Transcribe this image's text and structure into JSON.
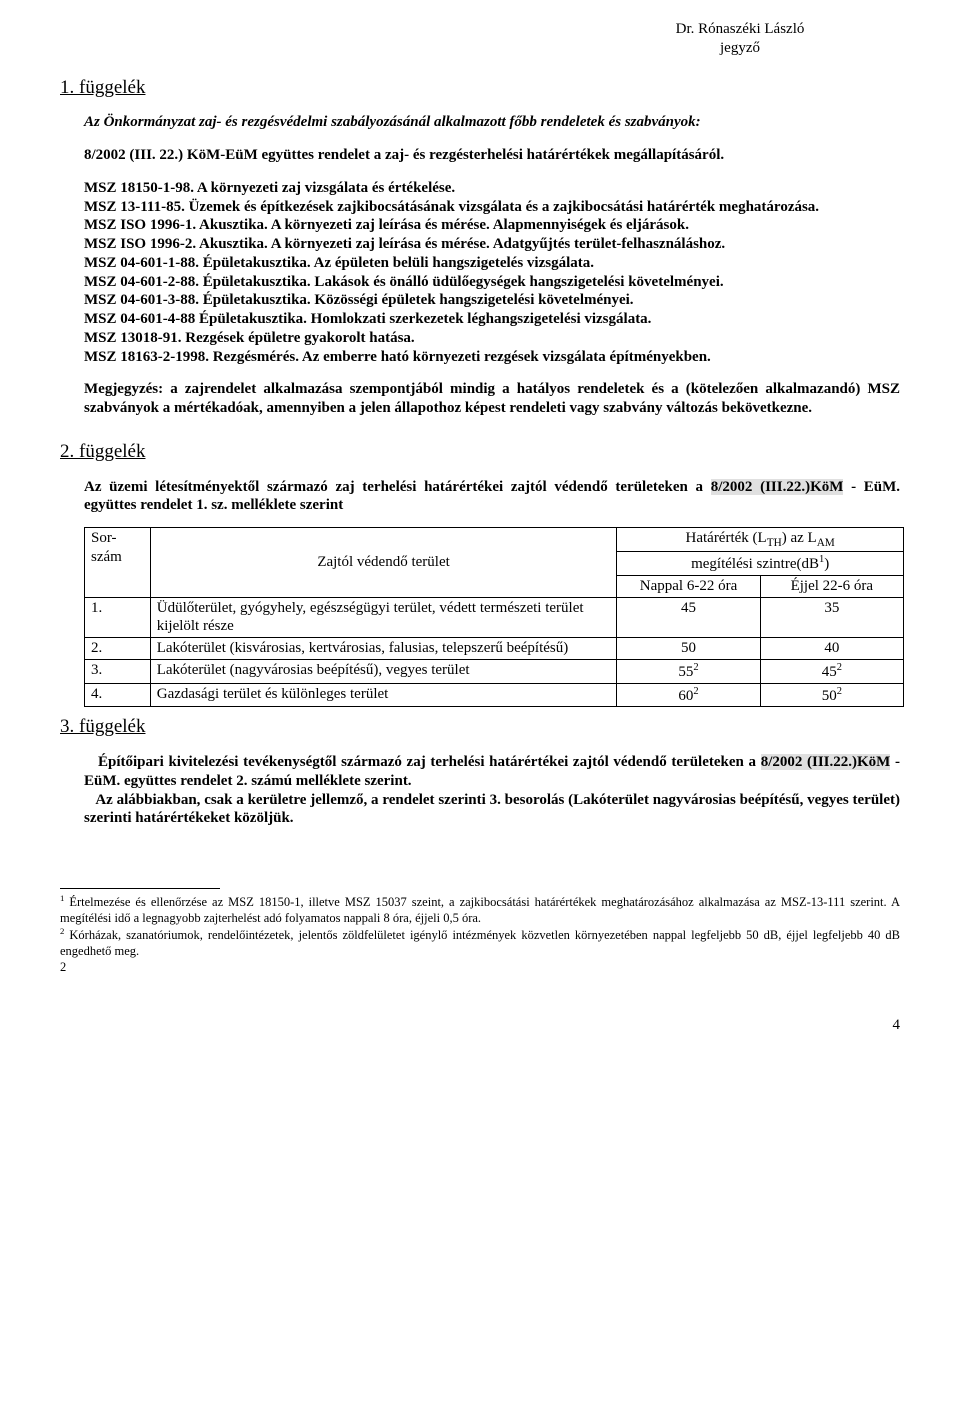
{
  "header": {
    "name": "Dr. Rónaszéki László",
    "title": "jegyző"
  },
  "appendix1": {
    "heading": "1. függelék",
    "intro": "Az Önkormányzat zaj- és rezgésvédelmi szabályozásánál alkalmazott főbb rendeletek és szabványok:",
    "p1": "8/2002 (III. 22.) KöM-EüM együttes rendelet a zaj- és rezgésterhelési határértékek megállapításáról.",
    "l1": "MSZ 18150-1-98. A környezeti zaj vizsgálata és értékelése.",
    "l2": "MSZ 13-111-85. Üzemek és építkezések zajkibocsátásának vizsgálata és a zajkibocsátási határérték meghatározása.",
    "l3": "MSZ ISO 1996-1. Akusztika. A környezeti zaj leírása és mérése. Alapmennyiségek és eljárások.",
    "l4": "MSZ ISO 1996-2. Akusztika. A környezeti zaj leírása és mérése. Adatgyűjtés terület-felhasználáshoz.",
    "l5": "MSZ 04-601-1-88. Épületakusztika. Az épületen belüli hangszigetelés vizsgálata.",
    "l6": "MSZ 04-601-2-88. Épületakusztika. Lakások és önálló üdülőegységek hangszigetelési követelményei.",
    "l7": "MSZ 04-601-3-88. Épületakusztika. Közösségi épületek hangszigetelési követelményei.",
    "l8": "MSZ 04-601-4-88 Épületakusztika. Homlokzati szerkezetek léghangszigetelési vizsgálata.",
    "l9": "MSZ 13018-91. Rezgések épületre gyakorolt hatása.",
    "l10": "MSZ 18163-2-1998. Rezgésmérés. Az emberre ható környezeti rezgések vizsgálata építményekben.",
    "note": "Megjegyzés: a zajrendelet alkalmazása szempontjából mindig a hatályos rendeletek és a (kötelezően alkalmazandó) MSZ szabványok a mértékadóak, amennyiben a jelen állapothoz képest rendeleti vagy szabvány változás bekövetkezne."
  },
  "appendix2": {
    "heading": "2. függelék",
    "intro_a": "Az üzemi létesítményektől származó zaj terhelési határértékei zajtól védendő területeken a ",
    "intro_hl": "8/2002 (III.22.)KöM",
    "intro_b": " - EüM. együttes rendelet 1. sz. melléklete szerint",
    "table": {
      "h_sor": "Sor-szám",
      "h_zone": "Zajtól védendő terület",
      "h_limit_a": "Határérték (L",
      "h_limit_sub1": "TH",
      "h_limit_b": ") az L",
      "h_limit_sub2": "AM",
      "h_unit_a": "megítélési szintre(dB",
      "h_unit_sup": "1",
      "h_unit_b": ")",
      "h_day": "Nappal 6-22 óra",
      "h_night": "Éjjel 22-6 óra",
      "rows": [
        {
          "n": "1.",
          "desc": "Üdülőterület, gyógyhely, egészségügyi terület, védett természeti terület kijelölt része",
          "day": "45",
          "night": "35",
          "sup": ""
        },
        {
          "n": "2.",
          "desc": "Lakóterület (kisvárosias, kertvárosias, falusias, telepszerű beépítésű)",
          "day": "50",
          "night": "40",
          "sup": ""
        },
        {
          "n": "3.",
          "desc": "Lakóterület (nagyvárosias beépítésű), vegyes terület",
          "day": "55",
          "night": "45",
          "sup": "2"
        },
        {
          "n": "4.",
          "desc": "Gazdasági terület és különleges terület",
          "day": "60",
          "night": "50",
          "sup": "2"
        }
      ]
    }
  },
  "appendix3": {
    "heading": "3. függelék",
    "p1_a": "Építőipari kivitelezési tevékenységtől származó zaj terhelési határértékei zajtól védendő területeken a ",
    "p1_hl": "8/2002 (III.22.)KöM",
    "p1_b": " - EüM. együttes rendelet 2. számú melléklete szerint.",
    "p2": "Az alábbiakban, csak a kerületre jellemző, a rendelet szerinti 3. besorolás (Lakóterület nagyvárosias beépítésű, vegyes terület) szerinti határértékeket közöljük."
  },
  "footnotes": {
    "f1_sup": "1",
    "f1": " Értelmezése és ellenőrzése az MSZ 18150-1, illetve MSZ 15037 szeint, a zajkibocsátási határértékek meghatározásához alkalmazása az MSZ-13-111 szerint. A megítélési idő a legnagyobb zajterhelést adó folyamatos nappali 8 óra, éjjeli 0,5 óra.",
    "f2_sup": "2",
    "f2": " Kórházak, szanatóriumok, rendelőintézetek, jelentős zöldfelületet igénylő intézmények közvetlen környezetében nappal legfeljebb 50 dB, éjjel legfeljebb 40 dB engedhető meg.",
    "f_last": "2"
  },
  "page_number": "4"
}
